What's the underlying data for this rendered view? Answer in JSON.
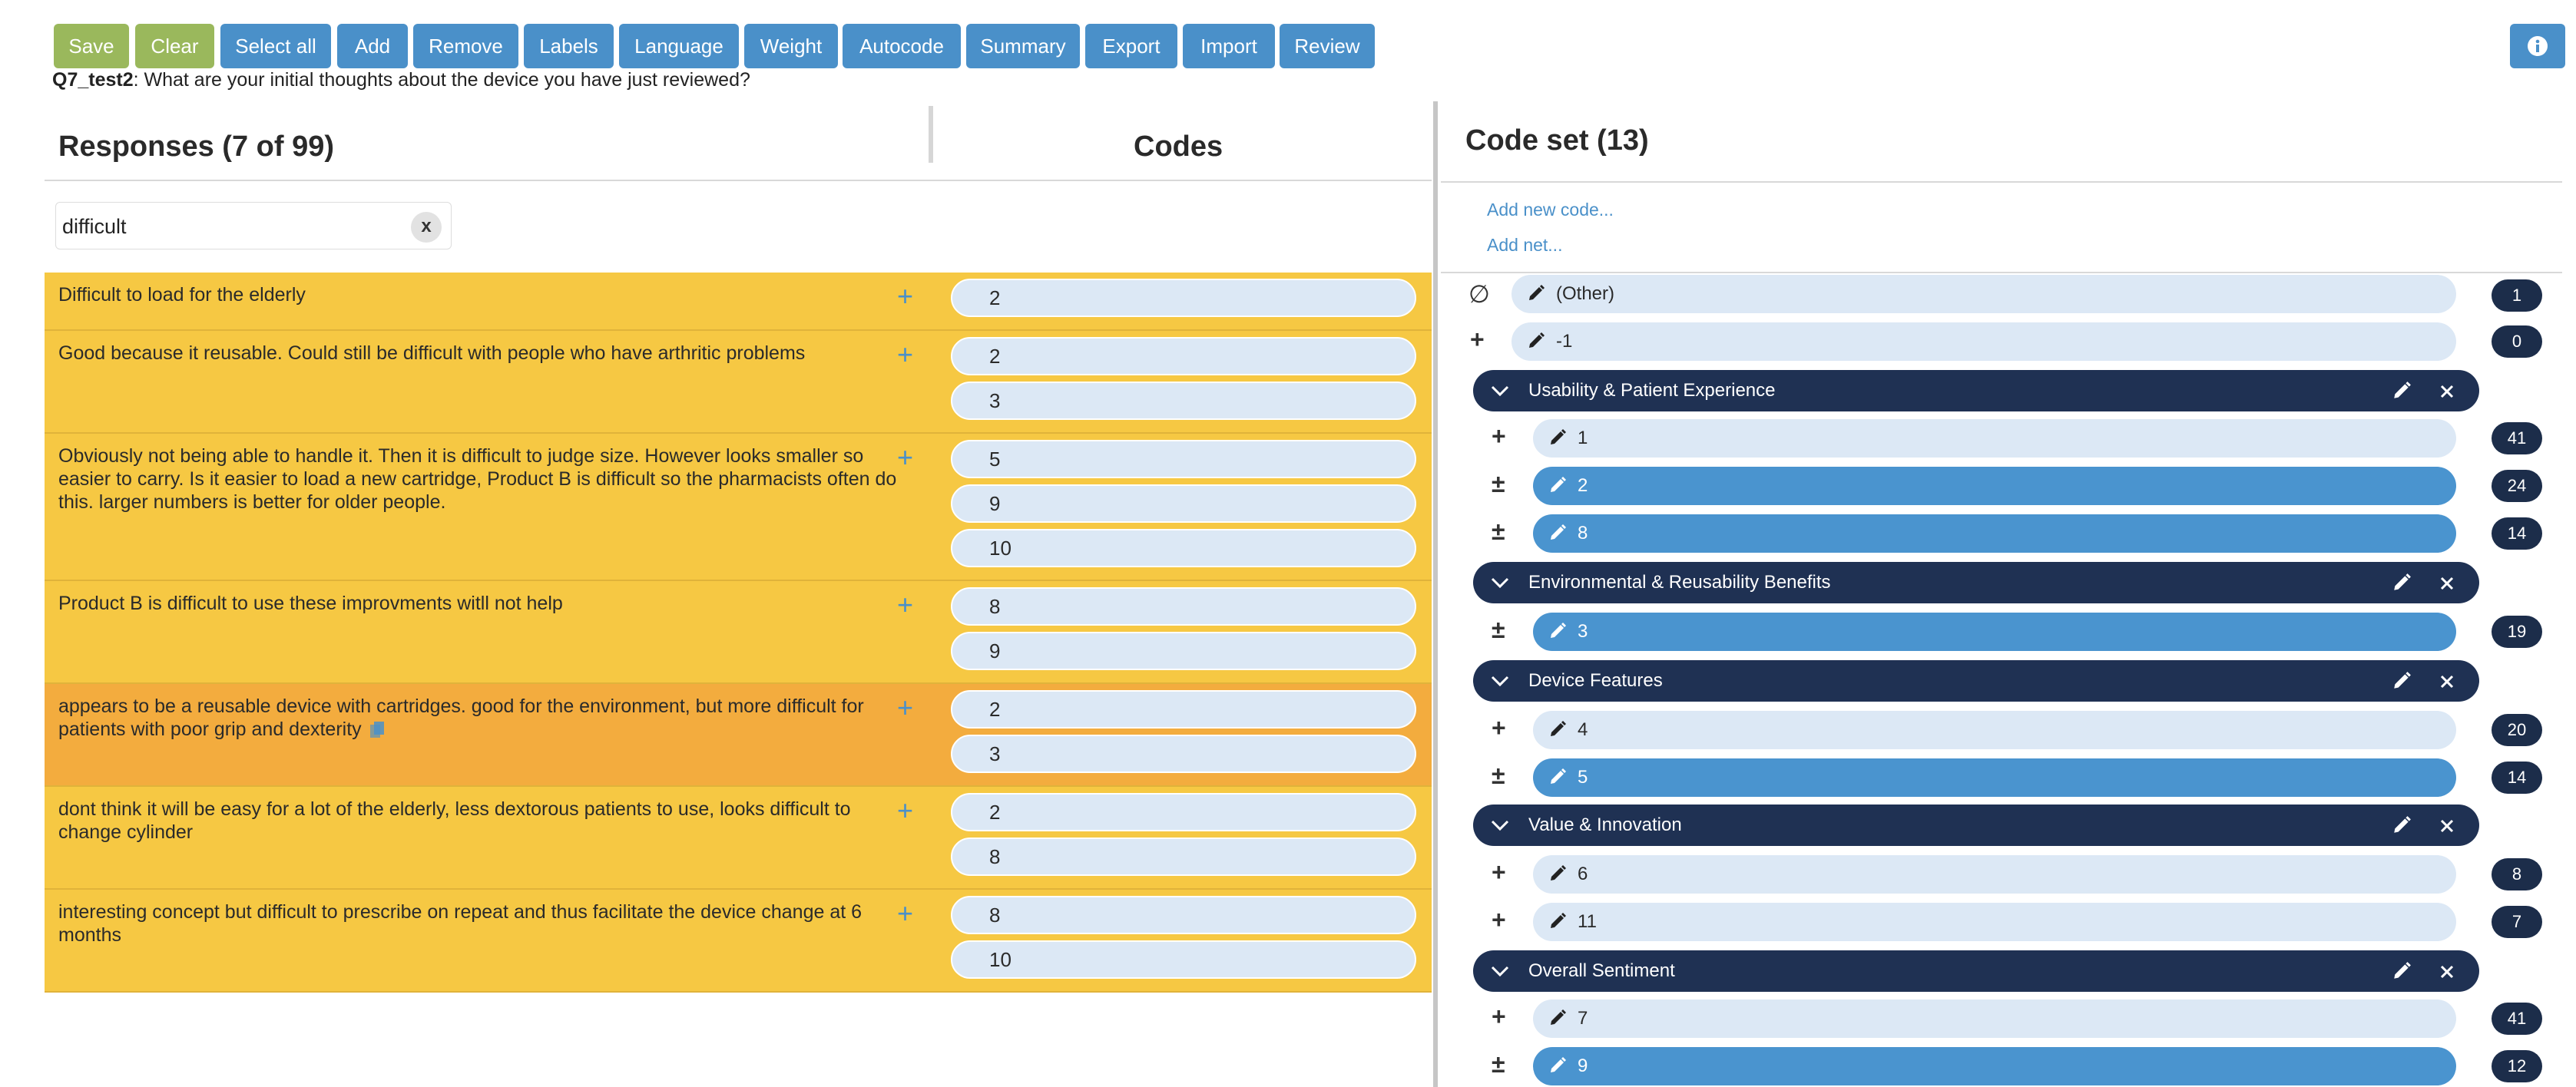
{
  "toolbar": {
    "buttons": [
      {
        "label": "Save",
        "style": "green"
      },
      {
        "label": "Clear",
        "style": "green"
      },
      {
        "label": "Select all",
        "style": "blue"
      },
      {
        "label": "Add",
        "style": "blue"
      },
      {
        "label": "Remove",
        "style": "blue"
      },
      {
        "label": "Labels",
        "style": "blue"
      },
      {
        "label": "Language",
        "style": "blue"
      },
      {
        "label": "Weight",
        "style": "blue"
      },
      {
        "label": "Autocode",
        "style": "blue"
      },
      {
        "label": "Summary",
        "style": "blue"
      },
      {
        "label": "Export",
        "style": "blue"
      },
      {
        "label": "Import",
        "style": "blue"
      },
      {
        "label": "Review",
        "style": "blue"
      }
    ],
    "info_icon": "info-icon"
  },
  "question": {
    "id": "Q7_test2",
    "text": ": What are your initial thoughts about the device you have just reviewed?"
  },
  "responses_panel": {
    "title": "Responses (7 of 99)",
    "codes_title": "Codes",
    "search_value": "difficult",
    "clear_label": "x",
    "rows": [
      {
        "text": "Difficult to load for the elderly",
        "codes": [
          "2"
        ]
      },
      {
        "text": "Good because it reusable. Could still be difficult with people who have arthritic problems",
        "codes": [
          "2",
          "3"
        ]
      },
      {
        "text": "Obviously not being able to handle it. Then it is difficult to judge size. However looks smaller so easier to carry. Is it easier to load a new cartridge, Product B is difficult so the pharmacists often do this. larger numbers is better for older people.",
        "codes": [
          "5",
          "9",
          "10"
        ]
      },
      {
        "text": "Product B is difficult to use these improvments witll not help",
        "codes": [
          "8",
          "9"
        ]
      },
      {
        "text": "appears to be a reusable device with cartridges. good for the environment, but more difficult for patients with poor grip and dexterity",
        "codes": [
          "2",
          "3"
        ],
        "highlighted": true
      },
      {
        "text": "dont think it will be easy for a lot of the elderly, less dextorous patients to use, looks difficult to change cylinder",
        "codes": [
          "2",
          "8"
        ]
      },
      {
        "text": "interesting concept but difficult to prescribe on repeat and thus facilitate the device change at 6 months",
        "codes": [
          "8",
          "10"
        ]
      }
    ],
    "row_add_symbol": "+"
  },
  "code_set": {
    "title": "Code set (13)",
    "add_code_link": "Add new code...",
    "add_net_link": "Add net...",
    "top_codes": [
      {
        "symbol": "∅",
        "label": "(Other)",
        "count": "1"
      },
      {
        "symbol": "+",
        "label": "-1",
        "count": "0"
      }
    ],
    "nets": [
      {
        "label": "Usability & Patient Experience",
        "codes": [
          {
            "symbol": "+",
            "label": "1",
            "count": "41",
            "selected": false
          },
          {
            "symbol": "±",
            "label": "2",
            "count": "24",
            "selected": true
          },
          {
            "symbol": "±",
            "label": "8",
            "count": "14",
            "selected": true
          }
        ]
      },
      {
        "label": "Environmental & Reusability Benefits",
        "codes": [
          {
            "symbol": "±",
            "label": "3",
            "count": "19",
            "selected": true
          }
        ]
      },
      {
        "label": "Device Features",
        "codes": [
          {
            "symbol": "+",
            "label": "4",
            "count": "20",
            "selected": false
          },
          {
            "symbol": "±",
            "label": "5",
            "count": "14",
            "selected": true
          }
        ]
      },
      {
        "label": "Value & Innovation",
        "codes": [
          {
            "symbol": "+",
            "label": "6",
            "count": "8",
            "selected": false
          },
          {
            "symbol": "+",
            "label": "11",
            "count": "7",
            "selected": false
          }
        ]
      },
      {
        "label": "Overall Sentiment",
        "codes": [
          {
            "symbol": "+",
            "label": "7",
            "count": "41",
            "selected": false
          },
          {
            "symbol": "±",
            "label": "9",
            "count": "12",
            "selected": true
          }
        ]
      }
    ]
  }
}
